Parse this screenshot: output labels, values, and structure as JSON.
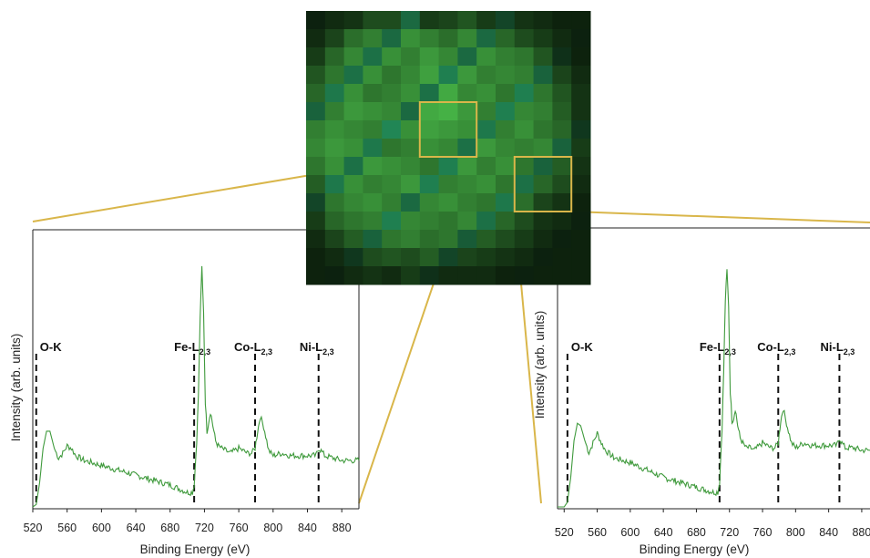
{
  "colors": {
    "spectrum": "#3f9a3c",
    "map_dark": "#0a1a0a",
    "map_green": "#4cc24c",
    "zoom_lines": "#d9b64a",
    "edge_markers": "#111111"
  },
  "map": {
    "rows": 15,
    "cols": 15,
    "intensity": [
      [
        0.05,
        0.1,
        0.15,
        0.3,
        0.3,
        0.55,
        0.2,
        0.25,
        0.35,
        0.2,
        0.3,
        0.15,
        0.1,
        0.05,
        0.05
      ],
      [
        0.1,
        0.25,
        0.5,
        0.6,
        0.55,
        0.7,
        0.6,
        0.5,
        0.65,
        0.55,
        0.45,
        0.3,
        0.2,
        0.1,
        0.05
      ],
      [
        0.2,
        0.45,
        0.65,
        0.6,
        0.7,
        0.6,
        0.75,
        0.65,
        0.55,
        0.7,
        0.6,
        0.55,
        0.35,
        0.15,
        0.05
      ],
      [
        0.35,
        0.55,
        0.6,
        0.7,
        0.55,
        0.65,
        0.8,
        0.7,
        0.75,
        0.6,
        0.65,
        0.6,
        0.5,
        0.25,
        0.1
      ],
      [
        0.45,
        0.65,
        0.7,
        0.55,
        0.6,
        0.7,
        0.6,
        0.85,
        0.65,
        0.7,
        0.55,
        0.7,
        0.55,
        0.35,
        0.15
      ],
      [
        0.5,
        0.6,
        0.75,
        0.7,
        0.65,
        0.55,
        0.85,
        0.9,
        0.75,
        0.6,
        0.7,
        0.65,
        0.6,
        0.4,
        0.15
      ],
      [
        0.6,
        0.7,
        0.65,
        0.6,
        0.75,
        0.7,
        0.8,
        0.75,
        0.7,
        0.65,
        0.6,
        0.7,
        0.55,
        0.45,
        0.2
      ],
      [
        0.65,
        0.75,
        0.7,
        0.65,
        0.55,
        0.6,
        0.7,
        0.65,
        0.6,
        0.75,
        0.65,
        0.6,
        0.65,
        0.5,
        0.2
      ],
      [
        0.55,
        0.7,
        0.6,
        0.75,
        0.7,
        0.65,
        0.55,
        0.7,
        0.75,
        0.6,
        0.7,
        0.55,
        0.5,
        0.4,
        0.15
      ],
      [
        0.4,
        0.65,
        0.7,
        0.6,
        0.65,
        0.75,
        0.7,
        0.6,
        0.65,
        0.7,
        0.55,
        0.6,
        0.45,
        0.3,
        0.1
      ],
      [
        0.3,
        0.55,
        0.65,
        0.7,
        0.6,
        0.55,
        0.65,
        0.7,
        0.6,
        0.55,
        0.65,
        0.5,
        0.25,
        0.15,
        0.05
      ],
      [
        0.2,
        0.45,
        0.55,
        0.6,
        0.7,
        0.65,
        0.6,
        0.55,
        0.65,
        0.6,
        0.45,
        0.3,
        0.15,
        0.1,
        0.05
      ],
      [
        0.1,
        0.25,
        0.4,
        0.5,
        0.55,
        0.6,
        0.5,
        0.55,
        0.45,
        0.4,
        0.3,
        0.2,
        0.1,
        0.05,
        0.05
      ],
      [
        0.05,
        0.1,
        0.2,
        0.3,
        0.35,
        0.3,
        0.4,
        0.3,
        0.25,
        0.2,
        0.15,
        0.1,
        0.05,
        0.05,
        0.05
      ],
      [
        0.05,
        0.05,
        0.1,
        0.15,
        0.1,
        0.2,
        0.15,
        0.1,
        0.1,
        0.1,
        0.05,
        0.05,
        0.05,
        0.05,
        0.05
      ]
    ],
    "regions": [
      {
        "name": "left-spectrum-region",
        "row_start": 5,
        "col_start": 6,
        "rows": 3,
        "cols": 3
      },
      {
        "name": "right-spectrum-region",
        "row_start": 8,
        "col_start": 11,
        "rows": 3,
        "cols": 3
      }
    ]
  },
  "chart_data": [
    {
      "type": "line",
      "xlabel": "Binding Energy (eV)",
      "ylabel": "Intensity (arb. units)",
      "xlim": [
        520,
        900
      ],
      "ylim": [
        0,
        1.0
      ],
      "xticks": [
        520,
        560,
        600,
        640,
        680,
        720,
        760,
        800,
        840,
        880
      ],
      "edges": [
        {
          "label": "O-K",
          "main": "O-K",
          "sub": "",
          "x": 524
        },
        {
          "label": "Fe-L2,3",
          "main": "Fe-L",
          "sub": "2,3",
          "x": 708
        },
        {
          "label": "Co-L2,3",
          "main": "Co-L",
          "sub": "2,3",
          "x": 779
        },
        {
          "label": "Ni-L2,3",
          "main": "Ni-L",
          "sub": "2,3",
          "x": 853
        }
      ],
      "series": [
        {
          "x": [
            520,
            524,
            528,
            532,
            536,
            540,
            545,
            550,
            555,
            560,
            565,
            570,
            580,
            590,
            600,
            620,
            640,
            660,
            680,
            700,
            706,
            708,
            711,
            713,
            715,
            717,
            719,
            721,
            723,
            725,
            727,
            730,
            733,
            736,
            740,
            745,
            750,
            760,
            770,
            775,
            779,
            782,
            785,
            789,
            795,
            800,
            810,
            820,
            830,
            840,
            850,
            853,
            856,
            860,
            870,
            880,
            890,
            900
          ],
          "y": [
            0.0,
            0.01,
            0.1,
            0.24,
            0.31,
            0.31,
            0.24,
            0.2,
            0.22,
            0.25,
            0.24,
            0.21,
            0.19,
            0.18,
            0.17,
            0.15,
            0.13,
            0.11,
            0.09,
            0.06,
            0.06,
            0.09,
            0.27,
            0.46,
            0.78,
            0.98,
            0.8,
            0.43,
            0.31,
            0.35,
            0.39,
            0.33,
            0.27,
            0.25,
            0.24,
            0.23,
            0.22,
            0.24,
            0.22,
            0.22,
            0.24,
            0.31,
            0.37,
            0.33,
            0.23,
            0.21,
            0.22,
            0.21,
            0.21,
            0.21,
            0.21,
            0.24,
            0.23,
            0.21,
            0.2,
            0.19,
            0.19,
            0.19
          ]
        }
      ]
    },
    {
      "type": "line",
      "xlabel": "Binding Energy (eV)",
      "ylabel": "Intensity (arb. units)",
      "xlim": [
        512,
        890
      ],
      "ylim": [
        0,
        1.0
      ],
      "xticks": [
        520,
        560,
        600,
        640,
        680,
        720,
        760,
        800,
        840,
        880
      ],
      "edges": [
        {
          "label": "O-K",
          "main": "O-K",
          "sub": "",
          "x": 524
        },
        {
          "label": "Fe-L2,3",
          "main": "Fe-L",
          "sub": "2,3",
          "x": 708
        },
        {
          "label": "Co-L2,3",
          "main": "Co-L",
          "sub": "2,3",
          "x": 779
        },
        {
          "label": "Ni-L2,3",
          "main": "Ni-L",
          "sub": "2,3",
          "x": 853
        }
      ],
      "series": [
        {
          "x": [
            512,
            520,
            524,
            528,
            532,
            536,
            540,
            545,
            550,
            555,
            560,
            565,
            570,
            580,
            590,
            600,
            620,
            640,
            660,
            680,
            700,
            706,
            708,
            711,
            713,
            715,
            717,
            719,
            721,
            723,
            725,
            727,
            730,
            733,
            736,
            740,
            745,
            750,
            760,
            770,
            775,
            779,
            782,
            785,
            789,
            795,
            800,
            810,
            820,
            830,
            840,
            850,
            853,
            856,
            860,
            870,
            880,
            890
          ],
          "y": [
            0.0,
            0.0,
            0.02,
            0.12,
            0.27,
            0.34,
            0.33,
            0.27,
            0.22,
            0.26,
            0.3,
            0.26,
            0.23,
            0.2,
            0.19,
            0.18,
            0.15,
            0.12,
            0.1,
            0.08,
            0.06,
            0.06,
            0.1,
            0.32,
            0.55,
            0.84,
            0.96,
            0.82,
            0.47,
            0.35,
            0.36,
            0.4,
            0.33,
            0.28,
            0.26,
            0.24,
            0.24,
            0.23,
            0.26,
            0.24,
            0.24,
            0.26,
            0.35,
            0.4,
            0.34,
            0.26,
            0.24,
            0.26,
            0.25,
            0.25,
            0.25,
            0.25,
            0.28,
            0.26,
            0.24,
            0.24,
            0.23,
            0.23
          ]
        }
      ]
    }
  ]
}
